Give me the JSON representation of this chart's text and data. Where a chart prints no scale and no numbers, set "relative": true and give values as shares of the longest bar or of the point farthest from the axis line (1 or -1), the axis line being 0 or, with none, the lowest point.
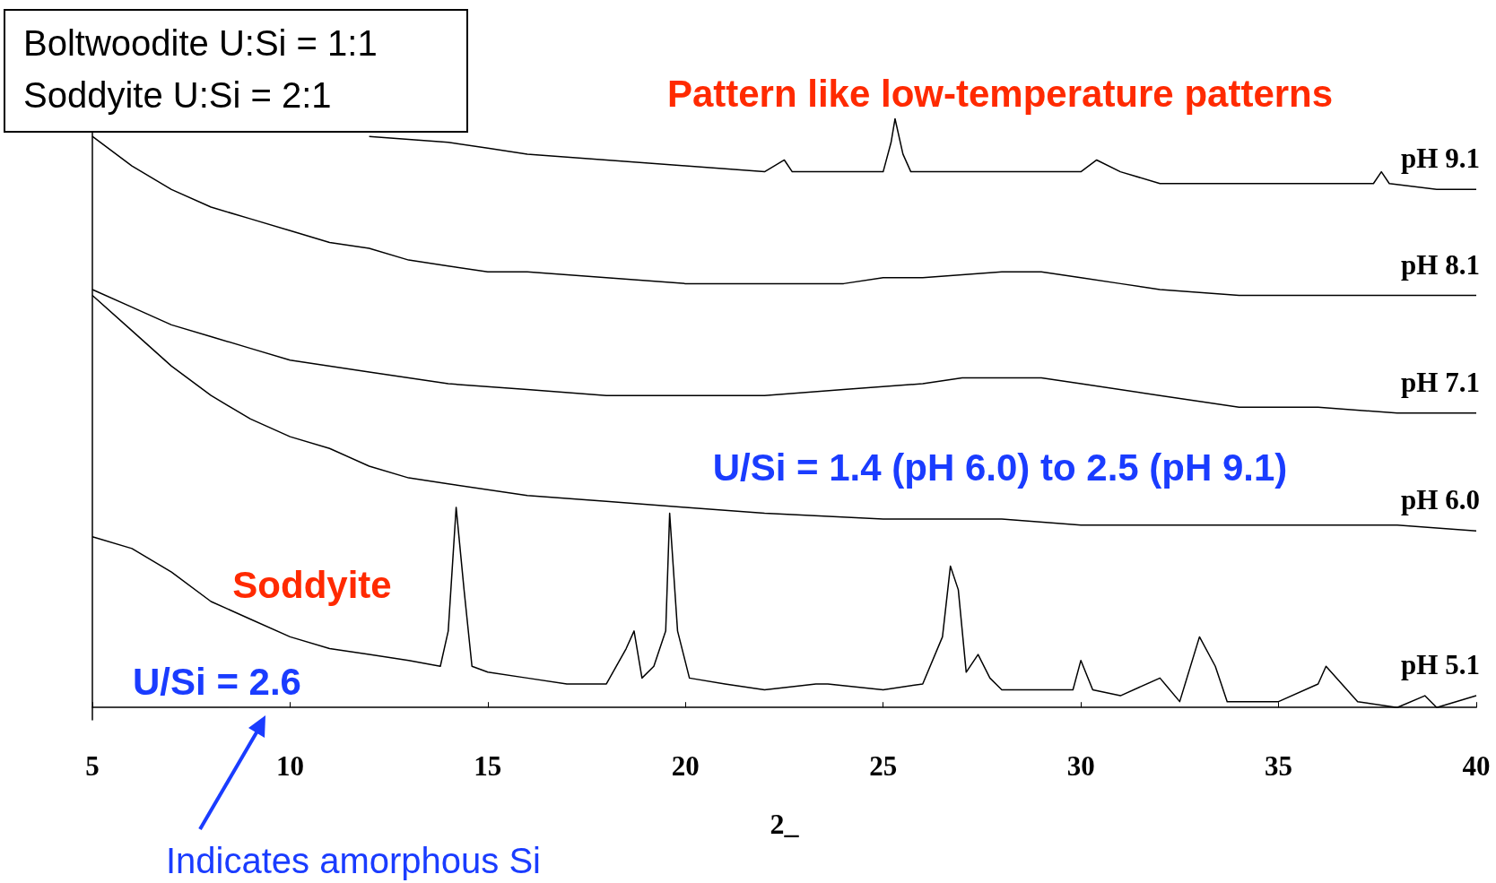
{
  "chart_data": {
    "type": "line",
    "xlabel": "2_",
    "relative": true,
    "xlim": [
      5,
      40
    ],
    "xticks": [
      5,
      10,
      15,
      20,
      25,
      30,
      35,
      40
    ],
    "tick_labels": "x",
    "grid": false,
    "legend": false,
    "marker": "none",
    "line_style": "solid",
    "annotations": [
      "Boltwoodite U:Si = 1:1",
      "Soddyite U:Si = 2:1",
      "Pattern like low-temperature patterns",
      "U/Si = 1.4 (pH 6.0) to 2.5 (pH 9.1)",
      "Soddyite",
      "U/Si = 2.6",
      "Indicates amorphous Si"
    ],
    "series": [
      {
        "name": "pH 9.1",
        "color": "#000000",
        "x": [
          12,
          14,
          15,
          16,
          18,
          20,
          22,
          22.5,
          22.7,
          24,
          25,
          25.2,
          25.3,
          25.5,
          25.7,
          27,
          28,
          30,
          30.4,
          31,
          32,
          34,
          36,
          37.4,
          37.6,
          37.8,
          39,
          40
        ],
        "values": [
          0.97,
          0.96,
          0.95,
          0.94,
          0.93,
          0.92,
          0.91,
          0.93,
          0.91,
          0.91,
          0.91,
          0.96,
          1.0,
          0.94,
          0.91,
          0.91,
          0.91,
          0.91,
          0.93,
          0.91,
          0.89,
          0.89,
          0.89,
          0.89,
          0.91,
          0.89,
          0.88,
          0.88
        ]
      },
      {
        "name": "pH 8.1",
        "color": "#000000",
        "x": [
          5,
          6,
          7,
          8,
          9,
          10,
          11,
          12,
          13,
          14,
          15,
          16,
          18,
          20,
          22,
          24,
          25,
          26,
          28,
          29,
          30,
          31,
          32,
          34,
          36,
          38,
          40
        ],
        "values": [
          0.97,
          0.92,
          0.88,
          0.85,
          0.83,
          0.81,
          0.79,
          0.78,
          0.76,
          0.75,
          0.74,
          0.74,
          0.73,
          0.72,
          0.72,
          0.72,
          0.73,
          0.73,
          0.74,
          0.74,
          0.73,
          0.72,
          0.71,
          0.7,
          0.7,
          0.7,
          0.7
        ]
      },
      {
        "name": "pH 7.1",
        "color": "#000000",
        "x": [
          5,
          6,
          7,
          8,
          9,
          10,
          12,
          14,
          16,
          18,
          20,
          22,
          24,
          26,
          27,
          28,
          29,
          30,
          32,
          34,
          36,
          38,
          40
        ],
        "values": [
          0.71,
          0.68,
          0.65,
          0.63,
          0.61,
          0.59,
          0.57,
          0.55,
          0.54,
          0.53,
          0.53,
          0.53,
          0.54,
          0.55,
          0.56,
          0.56,
          0.56,
          0.55,
          0.53,
          0.51,
          0.51,
          0.5,
          0.5
        ]
      },
      {
        "name": "pH 6.0",
        "color": "#000000",
        "x": [
          5,
          6,
          7,
          8,
          9,
          10,
          11,
          12,
          13,
          14,
          16,
          18,
          20,
          22,
          25,
          28,
          30,
          32,
          35,
          38,
          40
        ],
        "values": [
          0.7,
          0.64,
          0.58,
          0.53,
          0.49,
          0.46,
          0.44,
          0.41,
          0.39,
          0.38,
          0.36,
          0.35,
          0.34,
          0.33,
          0.32,
          0.32,
          0.31,
          0.31,
          0.31,
          0.31,
          0.3
        ]
      },
      {
        "name": "pH 5.1",
        "color": "#000000",
        "x": [
          5,
          6,
          7,
          8,
          9,
          10,
          11,
          12,
          13,
          13.8,
          14.0,
          14.2,
          14.4,
          14.6,
          15,
          16,
          17,
          18,
          18.5,
          18.7,
          18.9,
          19.2,
          19.5,
          19.6,
          19.8,
          20.1,
          21,
          22,
          23.3,
          23.6,
          25,
          26,
          26.5,
          26.7,
          26.9,
          27.1,
          27.4,
          27.7,
          28,
          29.8,
          30,
          30.3,
          31,
          32,
          32.5,
          33,
          33.4,
          33.7,
          35,
          36,
          36.2,
          36.6,
          37,
          38,
          38.7,
          39,
          40
        ],
        "values": [
          0.29,
          0.27,
          0.23,
          0.18,
          0.15,
          0.12,
          0.1,
          0.09,
          0.08,
          0.07,
          0.13,
          0.34,
          0.2,
          0.07,
          0.06,
          0.05,
          0.04,
          0.04,
          0.1,
          0.13,
          0.05,
          0.07,
          0.13,
          0.33,
          0.13,
          0.05,
          0.04,
          0.03,
          0.04,
          0.04,
          0.03,
          0.04,
          0.12,
          0.24,
          0.2,
          0.06,
          0.09,
          0.05,
          0.03,
          0.03,
          0.08,
          0.03,
          0.02,
          0.05,
          0.01,
          0.12,
          0.07,
          0.01,
          0.01,
          0.04,
          0.07,
          0.04,
          0.01,
          0.0,
          0.02,
          0.0,
          0.02
        ]
      }
    ]
  }
}
